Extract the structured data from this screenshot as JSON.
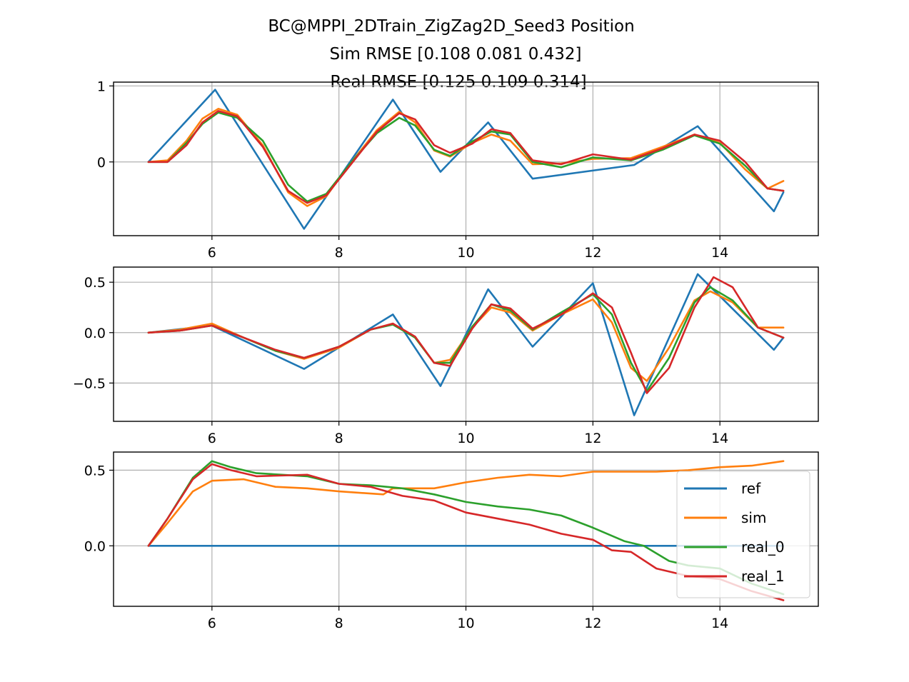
{
  "chart_data": {
    "type": "line",
    "title_lines": [
      "BC@MPPI_2DTrain_ZigZag2D_Seed3   Position",
      "Sim RMSE [0.108 0.081 0.432]",
      "Real RMSE [0.125 0.109 0.314]"
    ],
    "legend": [
      "ref",
      "sim",
      "real_0",
      "real_1"
    ],
    "colors": {
      "ref": "#1f77b4",
      "sim": "#ff7f0e",
      "real_0": "#2ca02c",
      "real_1": "#d62728"
    },
    "grid": true,
    "legend_position": "lower-right of bottom subplot",
    "subplots": [
      {
        "xlim": [
          4.45,
          15.55
        ],
        "ylim": [
          -0.97,
          1.05
        ],
        "xticks": [
          6,
          8,
          10,
          12,
          14
        ],
        "yticks": [
          {
            "v": 1,
            "label": "1"
          },
          {
            "v": 0,
            "label": "0"
          }
        ],
        "series": {
          "ref": [
            [
              5.0,
              0
            ],
            [
              6.05,
              0.95
            ],
            [
              7.45,
              -0.88
            ],
            [
              8.85,
              0.82
            ],
            [
              9.6,
              -0.13
            ],
            [
              10.35,
              0.52
            ],
            [
              11.05,
              -0.22
            ],
            [
              12.65,
              -0.04
            ],
            [
              13.65,
              0.47
            ],
            [
              14.85,
              -0.65
            ],
            [
              15.0,
              -0.4
            ]
          ],
          "sim": [
            [
              5.0,
              0
            ],
            [
              5.3,
              0.02
            ],
            [
              5.6,
              0.28
            ],
            [
              5.85,
              0.57
            ],
            [
              6.1,
              0.7
            ],
            [
              6.4,
              0.62
            ],
            [
              6.8,
              0.22
            ],
            [
              7.2,
              -0.4
            ],
            [
              7.5,
              -0.58
            ],
            [
              7.8,
              -0.45
            ],
            [
              8.2,
              0.0
            ],
            [
              8.6,
              0.42
            ],
            [
              8.95,
              0.66
            ],
            [
              9.2,
              0.52
            ],
            [
              9.5,
              0.15
            ],
            [
              9.75,
              0.07
            ],
            [
              10.1,
              0.25
            ],
            [
              10.4,
              0.36
            ],
            [
              10.7,
              0.28
            ],
            [
              11.05,
              -0.03
            ],
            [
              11.5,
              -0.02
            ],
            [
              12.0,
              0.04
            ],
            [
              12.6,
              0.05
            ],
            [
              13.1,
              0.2
            ],
            [
              13.6,
              0.36
            ],
            [
              14.0,
              0.25
            ],
            [
              14.4,
              -0.1
            ],
            [
              14.75,
              -0.35
            ],
            [
              15.0,
              -0.25
            ]
          ],
          "real_0": [
            [
              5.0,
              0
            ],
            [
              5.3,
              0.0
            ],
            [
              5.6,
              0.25
            ],
            [
              5.85,
              0.5
            ],
            [
              6.1,
              0.65
            ],
            [
              6.4,
              0.58
            ],
            [
              6.8,
              0.28
            ],
            [
              7.2,
              -0.3
            ],
            [
              7.5,
              -0.52
            ],
            [
              7.8,
              -0.42
            ],
            [
              8.2,
              0.0
            ],
            [
              8.6,
              0.38
            ],
            [
              8.95,
              0.58
            ],
            [
              9.2,
              0.48
            ],
            [
              9.5,
              0.16
            ],
            [
              9.75,
              0.08
            ],
            [
              10.1,
              0.27
            ],
            [
              10.4,
              0.4
            ],
            [
              10.7,
              0.36
            ],
            [
              11.05,
              0.0
            ],
            [
              11.5,
              -0.07
            ],
            [
              12.0,
              0.06
            ],
            [
              12.6,
              0.02
            ],
            [
              13.1,
              0.16
            ],
            [
              13.6,
              0.35
            ],
            [
              14.0,
              0.24
            ],
            [
              14.4,
              -0.05
            ],
            [
              14.75,
              -0.35
            ],
            [
              15.0,
              -0.38
            ]
          ],
          "real_1": [
            [
              5.0,
              0
            ],
            [
              5.3,
              0.0
            ],
            [
              5.6,
              0.22
            ],
            [
              5.85,
              0.52
            ],
            [
              6.1,
              0.67
            ],
            [
              6.4,
              0.6
            ],
            [
              6.8,
              0.2
            ],
            [
              7.2,
              -0.38
            ],
            [
              7.5,
              -0.54
            ],
            [
              7.8,
              -0.44
            ],
            [
              8.2,
              -0.02
            ],
            [
              8.6,
              0.4
            ],
            [
              8.95,
              0.64
            ],
            [
              9.2,
              0.56
            ],
            [
              9.5,
              0.22
            ],
            [
              9.75,
              0.12
            ],
            [
              10.1,
              0.24
            ],
            [
              10.4,
              0.43
            ],
            [
              10.7,
              0.38
            ],
            [
              11.05,
              0.02
            ],
            [
              11.5,
              -0.03
            ],
            [
              12.0,
              0.1
            ],
            [
              12.6,
              0.03
            ],
            [
              13.1,
              0.18
            ],
            [
              13.6,
              0.36
            ],
            [
              14.0,
              0.28
            ],
            [
              14.4,
              0.0
            ],
            [
              14.75,
              -0.35
            ],
            [
              15.0,
              -0.38
            ]
          ]
        }
      },
      {
        "xlim": [
          4.45,
          15.55
        ],
        "ylim": [
          -0.88,
          0.65
        ],
        "xticks": [
          6,
          8,
          10,
          12,
          14
        ],
        "yticks": [
          {
            "v": 0.5,
            "label": "0.5"
          },
          {
            "v": 0.0,
            "label": "0.0"
          },
          {
            "v": -0.5,
            "label": "−0.5"
          }
        ],
        "series": {
          "ref": [
            [
              5.0,
              0
            ],
            [
              6.0,
              0.07
            ],
            [
              7.45,
              -0.36
            ],
            [
              8.85,
              0.18
            ],
            [
              9.6,
              -0.53
            ],
            [
              10.35,
              0.43
            ],
            [
              11.05,
              -0.14
            ],
            [
              12.0,
              0.49
            ],
            [
              12.65,
              -0.82
            ],
            [
              13.65,
              0.58
            ],
            [
              14.85,
              -0.17
            ],
            [
              15.0,
              -0.05
            ]
          ],
          "sim": [
            [
              5.0,
              0
            ],
            [
              5.5,
              0.03
            ],
            [
              6.0,
              0.09
            ],
            [
              6.5,
              -0.05
            ],
            [
              7.0,
              -0.18
            ],
            [
              7.45,
              -0.26
            ],
            [
              8.0,
              -0.15
            ],
            [
              8.5,
              0.03
            ],
            [
              8.85,
              0.09
            ],
            [
              9.2,
              -0.05
            ],
            [
              9.5,
              -0.3
            ],
            [
              9.75,
              -0.27
            ],
            [
              10.1,
              0.05
            ],
            [
              10.4,
              0.25
            ],
            [
              10.7,
              0.2
            ],
            [
              11.05,
              0.02
            ],
            [
              11.5,
              0.18
            ],
            [
              12.0,
              0.33
            ],
            [
              12.3,
              0.1
            ],
            [
              12.6,
              -0.35
            ],
            [
              12.85,
              -0.48
            ],
            [
              13.2,
              -0.15
            ],
            [
              13.6,
              0.32
            ],
            [
              13.85,
              0.41
            ],
            [
              14.2,
              0.3
            ],
            [
              14.6,
              0.05
            ],
            [
              15.0,
              0.05
            ]
          ],
          "real_0": [
            [
              5.0,
              0
            ],
            [
              5.5,
              0.02
            ],
            [
              6.0,
              0.07
            ],
            [
              6.5,
              -0.05
            ],
            [
              7.0,
              -0.18
            ],
            [
              7.45,
              -0.25
            ],
            [
              8.0,
              -0.14
            ],
            [
              8.5,
              0.03
            ],
            [
              8.85,
              0.08
            ],
            [
              9.2,
              -0.05
            ],
            [
              9.5,
              -0.3
            ],
            [
              9.75,
              -0.3
            ],
            [
              10.1,
              0.06
            ],
            [
              10.4,
              0.28
            ],
            [
              10.7,
              0.22
            ],
            [
              11.05,
              0.03
            ],
            [
              11.5,
              0.2
            ],
            [
              12.0,
              0.38
            ],
            [
              12.3,
              0.18
            ],
            [
              12.6,
              -0.3
            ],
            [
              12.85,
              -0.58
            ],
            [
              13.2,
              -0.25
            ],
            [
              13.6,
              0.3
            ],
            [
              13.85,
              0.45
            ],
            [
              14.2,
              0.32
            ],
            [
              14.6,
              0.05
            ],
            [
              15.0,
              -0.05
            ]
          ],
          "real_1": [
            [
              5.0,
              0
            ],
            [
              5.5,
              0.02
            ],
            [
              6.0,
              0.07
            ],
            [
              6.5,
              -0.05
            ],
            [
              7.0,
              -0.17
            ],
            [
              7.45,
              -0.25
            ],
            [
              8.0,
              -0.14
            ],
            [
              8.5,
              0.03
            ],
            [
              8.85,
              0.09
            ],
            [
              9.2,
              -0.04
            ],
            [
              9.5,
              -0.3
            ],
            [
              9.75,
              -0.33
            ],
            [
              10.1,
              0.04
            ],
            [
              10.4,
              0.28
            ],
            [
              10.7,
              0.24
            ],
            [
              11.05,
              0.04
            ],
            [
              11.5,
              0.18
            ],
            [
              12.0,
              0.39
            ],
            [
              12.3,
              0.25
            ],
            [
              12.6,
              -0.2
            ],
            [
              12.85,
              -0.6
            ],
            [
              13.2,
              -0.35
            ],
            [
              13.6,
              0.25
            ],
            [
              13.9,
              0.55
            ],
            [
              14.2,
              0.45
            ],
            [
              14.6,
              0.05
            ],
            [
              15.0,
              -0.05
            ]
          ]
        }
      },
      {
        "xlim": [
          4.45,
          15.55
        ],
        "ylim": [
          -0.4,
          0.62
        ],
        "xticks": [
          6,
          8,
          10,
          12,
          14
        ],
        "yticks": [
          {
            "v": 0.5,
            "label": "0.5"
          },
          {
            "v": 0.0,
            "label": "0.0"
          }
        ],
        "series": {
          "ref": [
            [
              5.0,
              0
            ],
            [
              15.0,
              0
            ]
          ],
          "sim": [
            [
              5.0,
              0
            ],
            [
              5.3,
              0.15
            ],
            [
              5.7,
              0.36
            ],
            [
              6.0,
              0.43
            ],
            [
              6.5,
              0.44
            ],
            [
              7.0,
              0.39
            ],
            [
              7.5,
              0.38
            ],
            [
              8.0,
              0.36
            ],
            [
              8.7,
              0.34
            ],
            [
              8.85,
              0.38
            ],
            [
              9.5,
              0.38
            ],
            [
              10.0,
              0.42
            ],
            [
              10.5,
              0.45
            ],
            [
              11.0,
              0.47
            ],
            [
              11.5,
              0.46
            ],
            [
              12.0,
              0.49
            ],
            [
              12.5,
              0.49
            ],
            [
              13.0,
              0.49
            ],
            [
              13.5,
              0.5
            ],
            [
              14.0,
              0.52
            ],
            [
              14.5,
              0.53
            ],
            [
              15.0,
              0.56
            ]
          ],
          "real_0": [
            [
              5.0,
              0
            ],
            [
              5.3,
              0.18
            ],
            [
              5.7,
              0.45
            ],
            [
              6.0,
              0.56
            ],
            [
              6.3,
              0.52
            ],
            [
              6.7,
              0.48
            ],
            [
              7.5,
              0.46
            ],
            [
              8.0,
              0.41
            ],
            [
              8.5,
              0.4
            ],
            [
              9.0,
              0.38
            ],
            [
              9.5,
              0.34
            ],
            [
              10.0,
              0.29
            ],
            [
              10.5,
              0.26
            ],
            [
              11.0,
              0.24
            ],
            [
              11.5,
              0.2
            ],
            [
              12.0,
              0.12
            ],
            [
              12.5,
              0.03
            ],
            [
              12.8,
              -0.0
            ],
            [
              13.2,
              -0.1
            ],
            [
              13.5,
              -0.13
            ],
            [
              14.0,
              -0.15
            ],
            [
              14.5,
              -0.25
            ],
            [
              15.0,
              -0.32
            ]
          ],
          "real_1": [
            [
              5.0,
              0
            ],
            [
              5.3,
              0.18
            ],
            [
              5.7,
              0.44
            ],
            [
              6.0,
              0.54
            ],
            [
              6.3,
              0.5
            ],
            [
              6.7,
              0.46
            ],
            [
              7.5,
              0.47
            ],
            [
              8.0,
              0.41
            ],
            [
              8.5,
              0.39
            ],
            [
              9.0,
              0.33
            ],
            [
              9.5,
              0.3
            ],
            [
              10.0,
              0.22
            ],
            [
              10.5,
              0.18
            ],
            [
              11.0,
              0.14
            ],
            [
              11.5,
              0.08
            ],
            [
              12.0,
              0.04
            ],
            [
              12.3,
              -0.03
            ],
            [
              12.6,
              -0.04
            ],
            [
              13.0,
              -0.15
            ],
            [
              13.5,
              -0.2
            ],
            [
              14.0,
              -0.22
            ],
            [
              14.5,
              -0.3
            ],
            [
              15.0,
              -0.36
            ]
          ]
        }
      }
    ]
  }
}
